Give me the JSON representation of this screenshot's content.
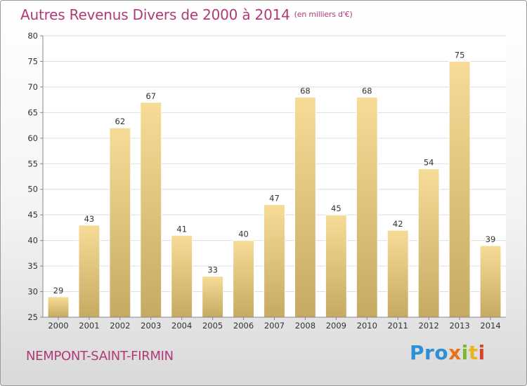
{
  "title": "Autres Revenus Divers de 2000 à 2014",
  "subtitle": "(en milliers d'€)",
  "location": "NEMPONT-SAINT-FIRMIN",
  "logo": {
    "p1": "Pro",
    "p2": "x",
    "p3": "i",
    "p4": "t",
    "p5": "i"
  },
  "colors": {
    "title": "#b03a78",
    "bar_light": "#f6dc97",
    "bar_dark": "#c6aa62"
  },
  "chart_data": {
    "type": "bar",
    "categories": [
      "2000",
      "2001",
      "2002",
      "2003",
      "2004",
      "2005",
      "2006",
      "2007",
      "2008",
      "2009",
      "2010",
      "2011",
      "2012",
      "2013",
      "2014"
    ],
    "values": [
      29,
      43,
      62,
      67,
      41,
      33,
      40,
      47,
      68,
      45,
      68,
      42,
      54,
      75,
      39
    ],
    "ylim": [
      25,
      80
    ],
    "yticks": [
      25,
      30,
      35,
      40,
      45,
      50,
      55,
      60,
      65,
      70,
      75,
      80
    ],
    "grid": true,
    "legend": "none"
  }
}
